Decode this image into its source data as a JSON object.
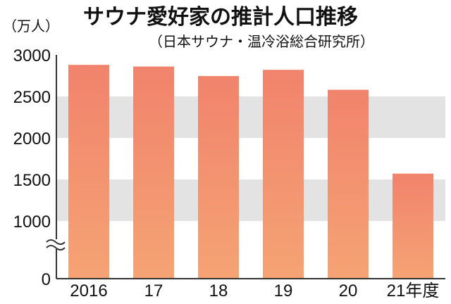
{
  "chart_data": {
    "type": "bar",
    "title": "サウナ愛好家の推計人口推移",
    "subtitle": "（日本サウナ・温冷浴総合研究所）",
    "unit_label": "（万人）",
    "categories": [
      "2016",
      "17",
      "18",
      "19",
      "20",
      "21年度"
    ],
    "values": [
      2880,
      2860,
      2745,
      2820,
      2580,
      1570
    ],
    "y_ticks": [
      0,
      1000,
      1500,
      2000,
      2500,
      3000
    ],
    "ylim": [
      0,
      3000
    ],
    "axis_break": true,
    "grid_bands": [
      [
        1000,
        1500
      ],
      [
        2000,
        2500
      ]
    ],
    "colors": {
      "bar_top": "#f1836c",
      "bar_bottom": "#f5a374",
      "band": "#e3e3e3",
      "axis": "#333333"
    }
  }
}
